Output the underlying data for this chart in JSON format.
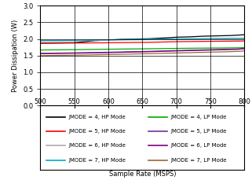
{
  "x": [
    500,
    510,
    520,
    530,
    540,
    550,
    560,
    570,
    580,
    590,
    600,
    610,
    620,
    630,
    640,
    650,
    660,
    670,
    680,
    690,
    700,
    710,
    720,
    730,
    740,
    750,
    760,
    770,
    780,
    790,
    800
  ],
  "xlim": [
    500,
    800
  ],
  "ylim": [
    0,
    3
  ],
  "xticks": [
    500,
    550,
    600,
    650,
    700,
    750,
    800
  ],
  "yticks": [
    0,
    0.5,
    1,
    1.5,
    2,
    2.5,
    3
  ],
  "xlabel": "Sample Rate (MSPS)",
  "ylabel": "Power Dissipation (W)",
  "line_data": {
    "JMODE4_HP": [
      1.88,
      1.882,
      1.884,
      1.886,
      1.888,
      1.89,
      1.91,
      1.93,
      1.95,
      1.96,
      1.97,
      1.98,
      1.99,
      1.995,
      2.0,
      2.005,
      2.01,
      2.02,
      2.03,
      2.04,
      2.055,
      2.06,
      2.065,
      2.075,
      2.085,
      2.09,
      2.095,
      2.1,
      2.105,
      2.115,
      2.13
    ],
    "JMODE5_HP": [
      1.87,
      1.872,
      1.873,
      1.875,
      1.877,
      1.878,
      1.88,
      1.882,
      1.884,
      1.886,
      1.888,
      1.89,
      1.892,
      1.894,
      1.896,
      1.898,
      1.9,
      1.905,
      1.91,
      1.915,
      1.92,
      1.922,
      1.924,
      1.926,
      1.928,
      1.93,
      1.932,
      1.934,
      1.936,
      1.938,
      1.94
    ],
    "JMODE6_HP": [
      1.94,
      1.942,
      1.944,
      1.946,
      1.948,
      1.95,
      1.952,
      1.954,
      1.956,
      1.958,
      1.96,
      1.965,
      1.97,
      1.975,
      1.977,
      1.98,
      1.982,
      1.984,
      1.988,
      1.99,
      1.993,
      1.995,
      1.997,
      1.999,
      2.001,
      2.003,
      2.005,
      2.007,
      2.009,
      2.011,
      2.013
    ],
    "JMODE7_HP": [
      1.95,
      1.952,
      1.954,
      1.956,
      1.958,
      1.96,
      1.965,
      1.968,
      1.971,
      1.974,
      1.978,
      1.982,
      1.985,
      1.988,
      1.99,
      1.992,
      1.994,
      1.997,
      1.999,
      2.001,
      2.003,
      2.005,
      2.007,
      2.009,
      2.012,
      2.015,
      2.017,
      2.019,
      2.021,
      2.023,
      2.025
    ],
    "JMODE4_LP": [
      1.67,
      1.672,
      1.674,
      1.676,
      1.678,
      1.68,
      1.683,
      1.686,
      1.688,
      1.69,
      1.693,
      1.696,
      1.698,
      1.7,
      1.702,
      1.704,
      1.707,
      1.71,
      1.713,
      1.716,
      1.718,
      1.72,
      1.722,
      1.724,
      1.726,
      1.728,
      1.73,
      1.732,
      1.734,
      1.736,
      1.74
    ],
    "JMODE5_LP": [
      1.57,
      1.572,
      1.575,
      1.578,
      1.581,
      1.584,
      1.587,
      1.59,
      1.594,
      1.598,
      1.602,
      1.607,
      1.611,
      1.616,
      1.621,
      1.625,
      1.63,
      1.635,
      1.641,
      1.647,
      1.652,
      1.658,
      1.663,
      1.668,
      1.673,
      1.678,
      1.684,
      1.69,
      1.695,
      1.7,
      1.72
    ],
    "JMODE6_LP": [
      1.56,
      1.562,
      1.565,
      1.568,
      1.571,
      1.574,
      1.577,
      1.58,
      1.584,
      1.588,
      1.592,
      1.597,
      1.601,
      1.606,
      1.611,
      1.615,
      1.62,
      1.625,
      1.631,
      1.637,
      1.642,
      1.648,
      1.653,
      1.658,
      1.663,
      1.668,
      1.674,
      1.68,
      1.685,
      1.69,
      1.71
    ],
    "JMODE7_LP": [
      1.5,
      1.503,
      1.506,
      1.509,
      1.512,
      1.515,
      1.518,
      1.522,
      1.526,
      1.53,
      1.534,
      1.538,
      1.542,
      1.547,
      1.551,
      1.556,
      1.561,
      1.566,
      1.57,
      1.576,
      1.581,
      1.586,
      1.591,
      1.596,
      1.6,
      1.606,
      1.611,
      1.616,
      1.621,
      1.63,
      1.64
    ]
  },
  "series": [
    {
      "key": "JMODE4_HP",
      "label": "JMODE = 4, HP Mode",
      "color": "#000000"
    },
    {
      "key": "JMODE5_HP",
      "label": "JMODE = 5, HP Mode",
      "color": "#ff0000"
    },
    {
      "key": "JMODE6_HP",
      "label": "JMODE = 6, HP Mode",
      "color": "#aaaaaa"
    },
    {
      "key": "JMODE7_HP",
      "label": "JMODE = 7, HP Mode",
      "color": "#00aacc"
    },
    {
      "key": "JMODE4_LP",
      "label": "JMODE = 4, LP Mode",
      "color": "#00aa00"
    },
    {
      "key": "JMODE5_LP",
      "label": "JMODE = 5, LP Mode",
      "color": "#7030a0"
    },
    {
      "key": "JMODE6_LP",
      "label": "JMODE = 6, LP Mode",
      "color": "#800080"
    },
    {
      "key": "JMODE7_LP",
      "label": "JMODE = 7, LP Mode",
      "color": "#996633"
    }
  ],
  "tick_fontsize": 6,
  "label_fontsize": 6,
  "legend_fontsize": 5
}
